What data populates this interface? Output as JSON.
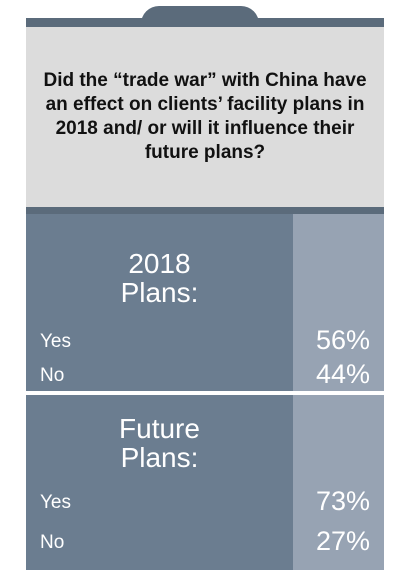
{
  "question": "Did the “trade war” with China have an effect on clients’ facility plans in 2018 and/ or will it influence their future plans?",
  "sections": [
    {
      "title_line1": "2018",
      "title_line2": "Plans:",
      "rows": [
        {
          "label": "Yes",
          "value": "56%"
        },
        {
          "label": "No",
          "value": "44%"
        }
      ]
    },
    {
      "title_line1": "Future",
      "title_line2": "Plans:",
      "rows": [
        {
          "label": "Yes",
          "value": "73%"
        },
        {
          "label": "No",
          "value": "27%"
        }
      ]
    }
  ],
  "colors": {
    "dark_slate": "#5b6b7b",
    "left_column": "#6b7d90",
    "right_column": "#97a3b3",
    "question_bg": "#dcdcdc"
  },
  "chart_data": {
    "type": "table",
    "title": "Did the “trade war” with China have an effect on clients’ facility plans in 2018 and/ or will it influence their future plans?",
    "columns": [
      "",
      ""
    ],
    "groups": [
      {
        "name": "2018 Plans:",
        "rows": [
          [
            "Yes",
            56
          ],
          [
            "No",
            44
          ]
        ]
      },
      {
        "name": "Future Plans:",
        "rows": [
          [
            "Yes",
            73
          ],
          [
            "No",
            27
          ]
        ]
      }
    ],
    "unit": "%"
  }
}
